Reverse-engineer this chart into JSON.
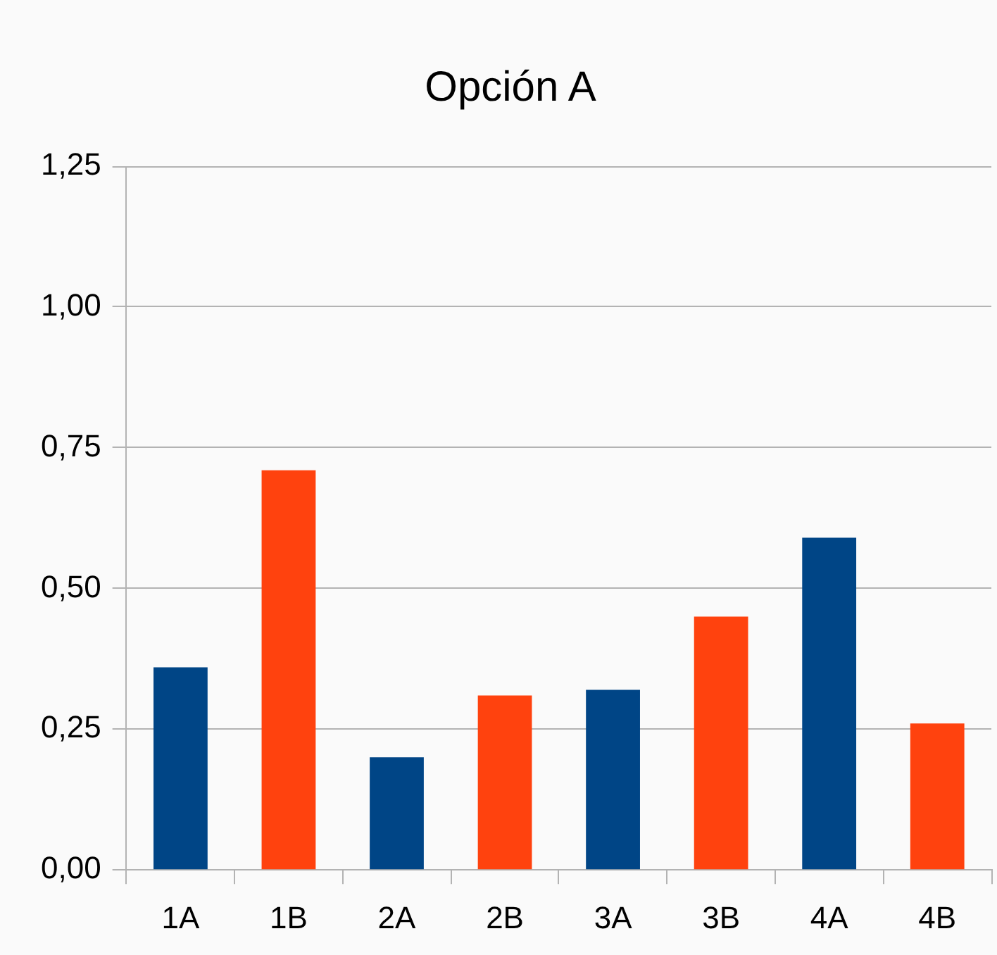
{
  "chart_data": {
    "type": "bar",
    "title": "Opción A",
    "categories": [
      "1A",
      "1B",
      "2A",
      "2B",
      "3A",
      "3B",
      "4A",
      "4B"
    ],
    "values": [
      0.36,
      0.71,
      0.2,
      0.31,
      0.32,
      0.45,
      0.59,
      0.26
    ],
    "colors": [
      "#004586",
      "#ff420e",
      "#004586",
      "#ff420e",
      "#004586",
      "#ff420e",
      "#004586",
      "#ff420e"
    ],
    "ylim": [
      0,
      1.25
    ],
    "yticks": [
      {
        "value": 0,
        "label": "0,00"
      },
      {
        "value": 0.25,
        "label": "0,25"
      },
      {
        "value": 0.5,
        "label": "0,50"
      },
      {
        "value": 0.75,
        "label": "0,75"
      },
      {
        "value": 1,
        "label": "1,00"
      },
      {
        "value": 1.25,
        "label": "1,25"
      }
    ],
    "grid": "y"
  }
}
